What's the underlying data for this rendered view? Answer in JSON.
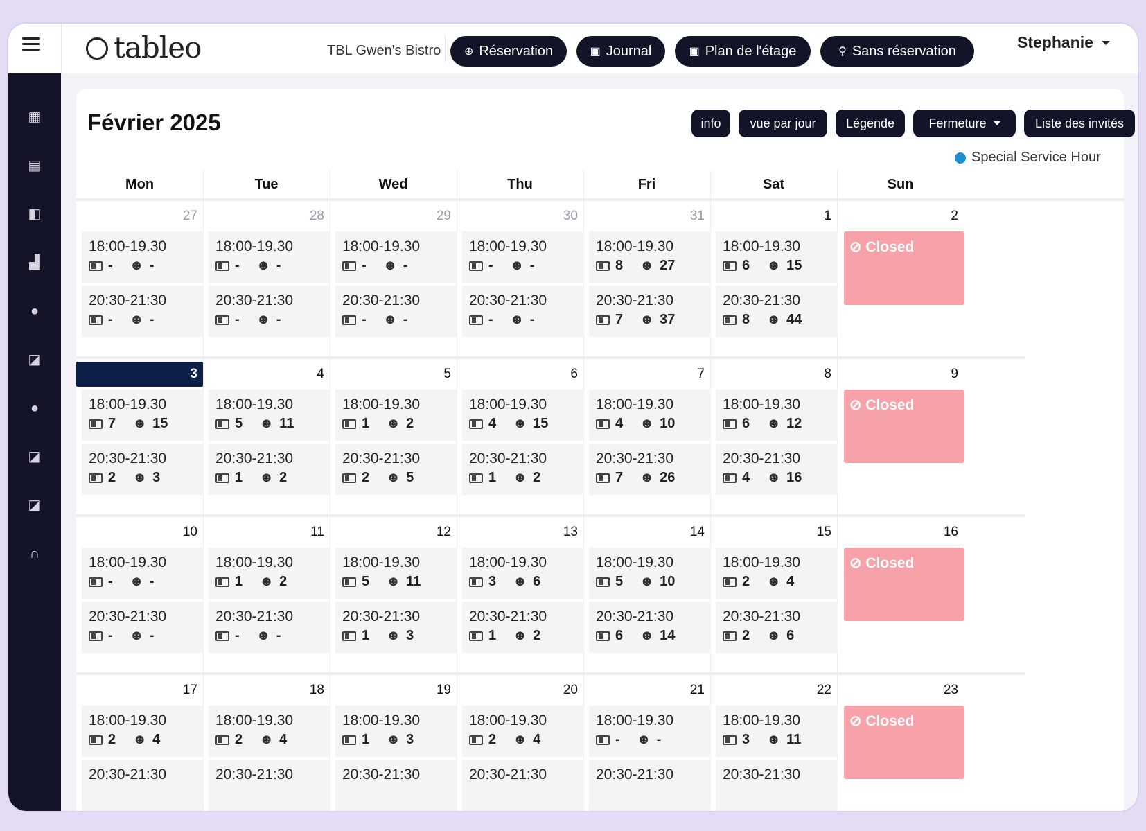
{
  "topbar": {
    "logo_text": "tableo",
    "restaurant": "TBL Gwen's Bistro",
    "buttons": [
      {
        "label": "Réservation",
        "icon": "plus-circle-icon"
      },
      {
        "label": "Journal",
        "icon": "calendar-icon"
      },
      {
        "label": "Plan de l'étage",
        "icon": "calendar-icon"
      },
      {
        "label": "Sans réservation",
        "icon": "walk-icon"
      }
    ],
    "user_name": "Stephanie"
  },
  "sidebar": [
    "dashboard-icon",
    "calendar-icon",
    "book-icon",
    "chart-icon",
    "user-icon",
    "edit-icon",
    "user-icon",
    "edit-icon",
    "edit-icon",
    "headset-icon"
  ],
  "calendar": {
    "title": "Février 2025",
    "actions": {
      "info": "info",
      "day_view": "vue par jour",
      "legend": "Légende",
      "closure": "Fermeture",
      "guests": "Liste des invités"
    },
    "legend_label": "Special Service Hour",
    "legend_color": "#1b8fd2",
    "weekdays": [
      "Mon",
      "Tue",
      "Wed",
      "Thu",
      "Fri",
      "Sat",
      "Sun"
    ],
    "closed_label": "Closed",
    "weeks": [
      {
        "days": [
          {
            "num": "27",
            "prev": true,
            "slots": [
              {
                "time": "18:00-19.30",
                "b": "-",
                "g": "-"
              },
              {
                "time": "20:30-21:30",
                "b": "-",
                "g": "-"
              }
            ]
          },
          {
            "num": "28",
            "prev": true,
            "slots": [
              {
                "time": "18:00-19.30",
                "b": "-",
                "g": "-"
              },
              {
                "time": "20:30-21:30",
                "b": "-",
                "g": "-"
              }
            ]
          },
          {
            "num": "29",
            "prev": true,
            "slots": [
              {
                "time": "18:00-19.30",
                "b": "-",
                "g": "-"
              },
              {
                "time": "20:30-21:30",
                "b": "-",
                "g": "-"
              }
            ]
          },
          {
            "num": "30",
            "prev": true,
            "slots": [
              {
                "time": "18:00-19.30",
                "b": "-",
                "g": "-"
              },
              {
                "time": "20:30-21:30",
                "b": "-",
                "g": "-"
              }
            ]
          },
          {
            "num": "31",
            "prev": true,
            "slots": [
              {
                "time": "18:00-19.30",
                "b": "8",
                "g": "27"
              },
              {
                "time": "20:30-21:30",
                "b": "7",
                "g": "37"
              }
            ]
          },
          {
            "num": "1",
            "slots": [
              {
                "time": "18:00-19.30",
                "b": "6",
                "g": "15"
              },
              {
                "time": "20:30-21:30",
                "b": "8",
                "g": "44"
              }
            ]
          },
          {
            "num": "2",
            "closed": true
          }
        ]
      },
      {
        "days": [
          {
            "num": "3",
            "today": true,
            "slots": [
              {
                "time": "18:00-19.30",
                "b": "7",
                "g": "15"
              },
              {
                "time": "20:30-21:30",
                "b": "2",
                "g": "3"
              }
            ]
          },
          {
            "num": "4",
            "slots": [
              {
                "time": "18:00-19.30",
                "b": "5",
                "g": "11"
              },
              {
                "time": "20:30-21:30",
                "b": "1",
                "g": "2"
              }
            ]
          },
          {
            "num": "5",
            "slots": [
              {
                "time": "18:00-19.30",
                "b": "1",
                "g": "2"
              },
              {
                "time": "20:30-21:30",
                "b": "2",
                "g": "5"
              }
            ]
          },
          {
            "num": "6",
            "slots": [
              {
                "time": "18:00-19.30",
                "b": "4",
                "g": "15"
              },
              {
                "time": "20:30-21:30",
                "b": "1",
                "g": "2"
              }
            ]
          },
          {
            "num": "7",
            "slots": [
              {
                "time": "18:00-19.30",
                "b": "4",
                "g": "10"
              },
              {
                "time": "20:30-21:30",
                "b": "7",
                "g": "26"
              }
            ]
          },
          {
            "num": "8",
            "slots": [
              {
                "time": "18:00-19.30",
                "b": "6",
                "g": "12"
              },
              {
                "time": "20:30-21:30",
                "b": "4",
                "g": "16"
              }
            ]
          },
          {
            "num": "9",
            "closed": true
          }
        ]
      },
      {
        "days": [
          {
            "num": "10",
            "slots": [
              {
                "time": "18:00-19.30",
                "b": "-",
                "g": "-"
              },
              {
                "time": "20:30-21:30",
                "b": "-",
                "g": "-"
              }
            ]
          },
          {
            "num": "11",
            "slots": [
              {
                "time": "18:00-19.30",
                "b": "1",
                "g": "2"
              },
              {
                "time": "20:30-21:30",
                "b": "-",
                "g": "-"
              }
            ]
          },
          {
            "num": "12",
            "slots": [
              {
                "time": "18:00-19.30",
                "b": "5",
                "g": "11"
              },
              {
                "time": "20:30-21:30",
                "b": "1",
                "g": "3"
              }
            ]
          },
          {
            "num": "13",
            "slots": [
              {
                "time": "18:00-19.30",
                "b": "3",
                "g": "6"
              },
              {
                "time": "20:30-21:30",
                "b": "1",
                "g": "2"
              }
            ]
          },
          {
            "num": "14",
            "slots": [
              {
                "time": "18:00-19.30",
                "b": "5",
                "g": "10"
              },
              {
                "time": "20:30-21:30",
                "b": "6",
                "g": "14"
              }
            ]
          },
          {
            "num": "15",
            "slots": [
              {
                "time": "18:00-19.30",
                "b": "2",
                "g": "4"
              },
              {
                "time": "20:30-21:30",
                "b": "2",
                "g": "6"
              }
            ]
          },
          {
            "num": "16",
            "closed": true
          }
        ]
      },
      {
        "days": [
          {
            "num": "17",
            "slots": [
              {
                "time": "18:00-19.30",
                "b": "2",
                "g": "4"
              },
              {
                "time": "20:30-21:30",
                "b": "",
                "g": ""
              }
            ]
          },
          {
            "num": "18",
            "slots": [
              {
                "time": "18:00-19.30",
                "b": "2",
                "g": "4"
              },
              {
                "time": "20:30-21:30",
                "b": "",
                "g": ""
              }
            ]
          },
          {
            "num": "19",
            "slots": [
              {
                "time": "18:00-19.30",
                "b": "1",
                "g": "3"
              },
              {
                "time": "20:30-21:30",
                "b": "",
                "g": ""
              }
            ]
          },
          {
            "num": "20",
            "slots": [
              {
                "time": "18:00-19.30",
                "b": "2",
                "g": "4"
              },
              {
                "time": "20:30-21:30",
                "b": "",
                "g": ""
              }
            ]
          },
          {
            "num": "21",
            "slots": [
              {
                "time": "18:00-19.30",
                "b": "-",
                "g": "-"
              },
              {
                "time": "20:30-21:30",
                "b": "",
                "g": ""
              }
            ]
          },
          {
            "num": "22",
            "slots": [
              {
                "time": "18:00-19.30",
                "b": "3",
                "g": "11"
              },
              {
                "time": "20:30-21:30",
                "b": "",
                "g": ""
              }
            ]
          },
          {
            "num": "23",
            "closed": true
          }
        ]
      }
    ]
  }
}
